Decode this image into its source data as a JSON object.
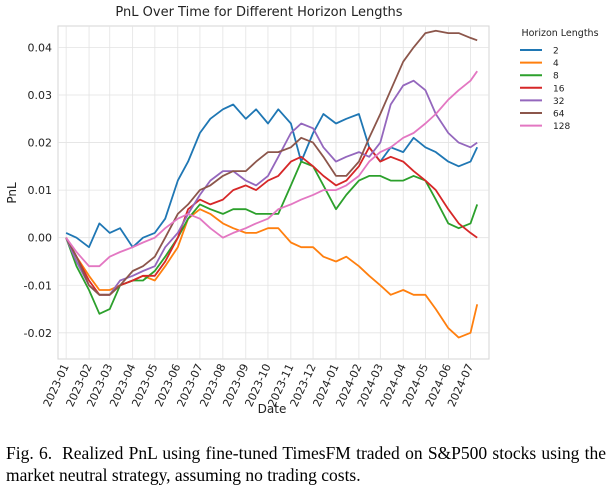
{
  "caption": {
    "label": "Fig. 6.",
    "text": "Realized PnL using fine-tuned TimesFM traded on S&P500 stocks using the market neutral strategy, assuming no trading costs."
  },
  "chart_data": {
    "type": "line",
    "title": "PnL Over Time for Different Horizon Lengths",
    "xlabel": "Date",
    "ylabel": "PnL",
    "ylim": [
      -0.0255,
      0.0445
    ],
    "xlim": [
      "2022-12-21",
      "2024-07-26"
    ],
    "grid": true,
    "legend_title": "Horizon Lengths",
    "legend_position": "outside-right",
    "x_ticks": [
      "2023-01",
      "2023-02",
      "2023-03",
      "2023-04",
      "2023-05",
      "2023-06",
      "2023-07",
      "2023-08",
      "2023-09",
      "2023-10",
      "2023-11",
      "2023-12",
      "2024-01",
      "2024-02",
      "2024-03",
      "2024-04",
      "2024-05",
      "2024-06",
      "2024-07"
    ],
    "y_ticks": [
      "-0.02",
      "-0.01",
      "0.00",
      "0.01",
      "0.02",
      "0.03",
      "0.04"
    ],
    "y_tick_values": [
      -0.02,
      -0.01,
      0,
      0.01,
      0.02,
      0.03,
      0.04
    ],
    "x": [
      "2023-01-01",
      "2023-01-15",
      "2023-02-01",
      "2023-02-15",
      "2023-03-01",
      "2023-03-15",
      "2023-04-01",
      "2023-04-15",
      "2023-05-01",
      "2023-05-15",
      "2023-06-01",
      "2023-06-15",
      "2023-07-01",
      "2023-07-15",
      "2023-08-01",
      "2023-08-15",
      "2023-09-01",
      "2023-09-15",
      "2023-10-01",
      "2023-10-15",
      "2023-11-01",
      "2023-11-15",
      "2023-12-01",
      "2023-12-15",
      "2024-01-01",
      "2024-01-15",
      "2024-02-01",
      "2024-02-15",
      "2024-03-01",
      "2024-03-15",
      "2024-04-01",
      "2024-04-15",
      "2024-05-01",
      "2024-05-15",
      "2024-06-01",
      "2024-06-15",
      "2024-07-01",
      "2024-07-10"
    ],
    "series": [
      {
        "name": "2",
        "color": "#1f77b4",
        "values": [
          0.001,
          0.0,
          -0.002,
          0.003,
          0.001,
          0.002,
          -0.002,
          0.0,
          0.001,
          0.004,
          0.012,
          0.016,
          0.022,
          0.025,
          0.027,
          0.028,
          0.025,
          0.027,
          0.024,
          0.027,
          0.024,
          0.016,
          0.022,
          0.026,
          0.024,
          0.025,
          0.026,
          0.019,
          0.016,
          0.019,
          0.018,
          0.021,
          0.019,
          0.018,
          0.016,
          0.015,
          0.016,
          0.019
        ]
      },
      {
        "name": "4",
        "color": "#ff7f0e",
        "values": [
          0.0,
          -0.004,
          -0.008,
          -0.011,
          -0.011,
          -0.01,
          -0.009,
          -0.008,
          -0.009,
          -0.006,
          -0.002,
          0.004,
          0.006,
          0.005,
          0.003,
          0.002,
          0.001,
          0.001,
          0.002,
          0.002,
          -0.001,
          -0.002,
          -0.002,
          -0.004,
          -0.005,
          -0.004,
          -0.006,
          -0.008,
          -0.01,
          -0.012,
          -0.011,
          -0.012,
          -0.012,
          -0.015,
          -0.019,
          -0.021,
          -0.02,
          -0.014
        ]
      },
      {
        "name": "8",
        "color": "#2ca02c",
        "values": [
          0.0,
          -0.006,
          -0.011,
          -0.016,
          -0.015,
          -0.01,
          -0.009,
          -0.009,
          -0.007,
          -0.004,
          0.0,
          0.004,
          0.007,
          0.006,
          0.005,
          0.006,
          0.006,
          0.005,
          0.005,
          0.005,
          0.011,
          0.016,
          0.015,
          0.011,
          0.006,
          0.009,
          0.012,
          0.013,
          0.013,
          0.012,
          0.012,
          0.013,
          0.012,
          0.008,
          0.003,
          0.002,
          0.003,
          0.007
        ]
      },
      {
        "name": "16",
        "color": "#d62728",
        "values": [
          0.0,
          -0.004,
          -0.009,
          -0.012,
          -0.012,
          -0.01,
          -0.009,
          -0.008,
          -0.008,
          -0.005,
          0.0,
          0.006,
          0.008,
          0.007,
          0.008,
          0.01,
          0.011,
          0.01,
          0.012,
          0.013,
          0.016,
          0.017,
          0.015,
          0.013,
          0.011,
          0.012,
          0.015,
          0.019,
          0.016,
          0.017,
          0.016,
          0.014,
          0.012,
          0.01,
          0.006,
          0.003,
          0.001,
          0.0
        ]
      },
      {
        "name": "32",
        "color": "#9467bd",
        "values": [
          0.0,
          -0.005,
          -0.01,
          -0.012,
          -0.012,
          -0.009,
          -0.008,
          -0.007,
          -0.006,
          -0.002,
          0.001,
          0.005,
          0.009,
          0.012,
          0.014,
          0.014,
          0.012,
          0.011,
          0.013,
          0.017,
          0.022,
          0.024,
          0.023,
          0.019,
          0.016,
          0.017,
          0.018,
          0.017,
          0.02,
          0.028,
          0.032,
          0.033,
          0.031,
          0.026,
          0.022,
          0.02,
          0.019,
          0.02
        ]
      },
      {
        "name": "64",
        "color": "#8c564b",
        "values": [
          0.0,
          -0.004,
          -0.01,
          -0.012,
          -0.012,
          -0.01,
          -0.007,
          -0.006,
          -0.004,
          0.0,
          0.005,
          0.007,
          0.01,
          0.011,
          0.013,
          0.014,
          0.014,
          0.016,
          0.018,
          0.018,
          0.019,
          0.021,
          0.02,
          0.017,
          0.013,
          0.013,
          0.016,
          0.021,
          0.026,
          0.031,
          0.037,
          0.04,
          0.043,
          0.0435,
          0.043,
          0.043,
          0.042,
          0.0415
        ]
      },
      {
        "name": "128",
        "color": "#e377c2",
        "values": [
          0.0,
          -0.003,
          -0.006,
          -0.006,
          -0.004,
          -0.003,
          -0.002,
          -0.001,
          0.0,
          0.002,
          0.004,
          0.005,
          0.004,
          0.002,
          0.0,
          0.001,
          0.002,
          0.003,
          0.004,
          0.006,
          0.007,
          0.008,
          0.009,
          0.01,
          0.01,
          0.011,
          0.013,
          0.016,
          0.018,
          0.019,
          0.021,
          0.022,
          0.024,
          0.026,
          0.029,
          0.031,
          0.033,
          0.035
        ]
      }
    ]
  }
}
